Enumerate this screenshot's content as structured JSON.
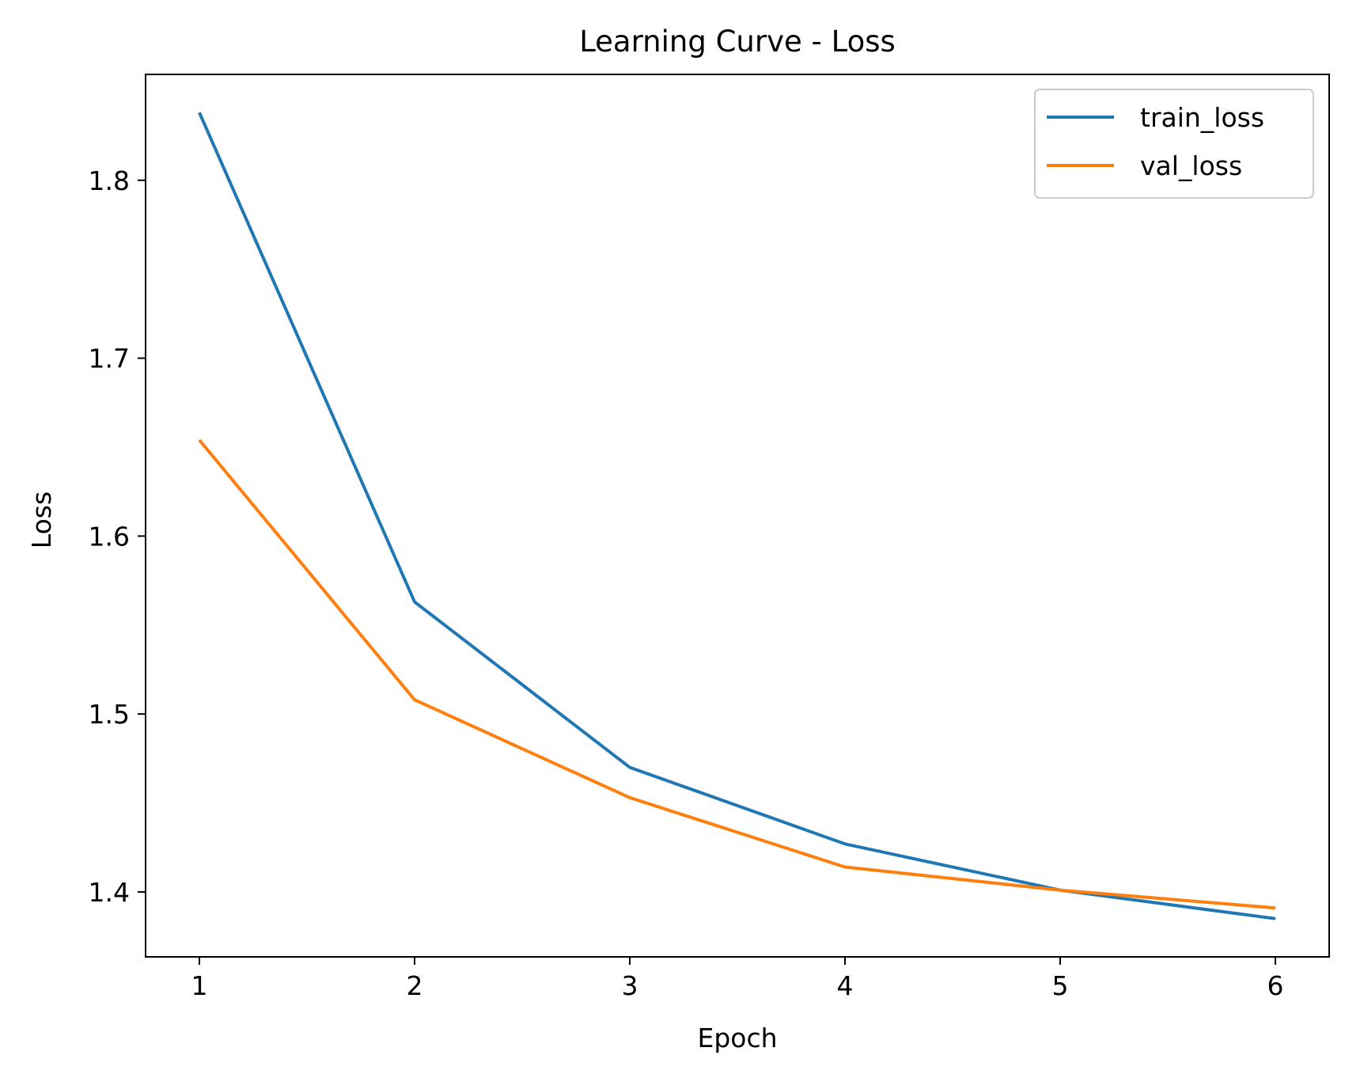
{
  "chart_data": {
    "type": "line",
    "title": "Learning Curve - Loss",
    "xlabel": "Epoch",
    "ylabel": "Loss",
    "x": [
      1,
      2,
      3,
      4,
      5,
      6
    ],
    "xlim": [
      0.75,
      6.25
    ],
    "ylim": [
      1.3635,
      1.8595
    ],
    "xticks": [
      1,
      2,
      3,
      4,
      5,
      6
    ],
    "yticks": [
      1.4,
      1.5,
      1.6,
      1.7,
      1.8
    ],
    "grid": false,
    "legend_position": "top-right",
    "series": [
      {
        "name": "train_loss",
        "color": "#1f77b4",
        "values": [
          1.838,
          1.563,
          1.47,
          1.427,
          1.401,
          1.385
        ]
      },
      {
        "name": "val_loss",
        "color": "#ff7f0e",
        "values": [
          1.654,
          1.508,
          1.453,
          1.414,
          1.401,
          1.391
        ]
      }
    ]
  }
}
